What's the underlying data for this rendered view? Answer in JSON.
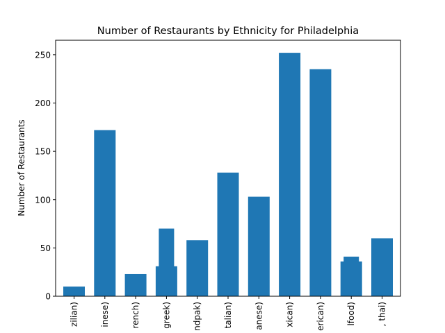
{
  "chart_data": {
    "type": "bar",
    "title": "Number of Restaurants by Ethnicity for Philadelphia",
    "xlabel": "",
    "ylabel": "Number of Restaurants",
    "ylim": [
      0,
      265
    ],
    "yticks": [
      0,
      50,
      100,
      150,
      200,
      250
    ],
    "grid": false,
    "bar_color": "#1f77b4",
    "categories": [
      "zilian)",
      "inese)",
      "rench)",
      "greek)",
      "ndpak)",
      "talian)",
      "anese)",
      "xican)",
      "erican)",
      "lfood)",
      ", thai)"
    ],
    "values": [
      10,
      172,
      23,
      31,
      58,
      128,
      103,
      252,
      235,
      36,
      60
    ],
    "overlay_values": [
      null,
      null,
      null,
      70,
      null,
      null,
      null,
      null,
      null,
      41,
      null
    ]
  }
}
